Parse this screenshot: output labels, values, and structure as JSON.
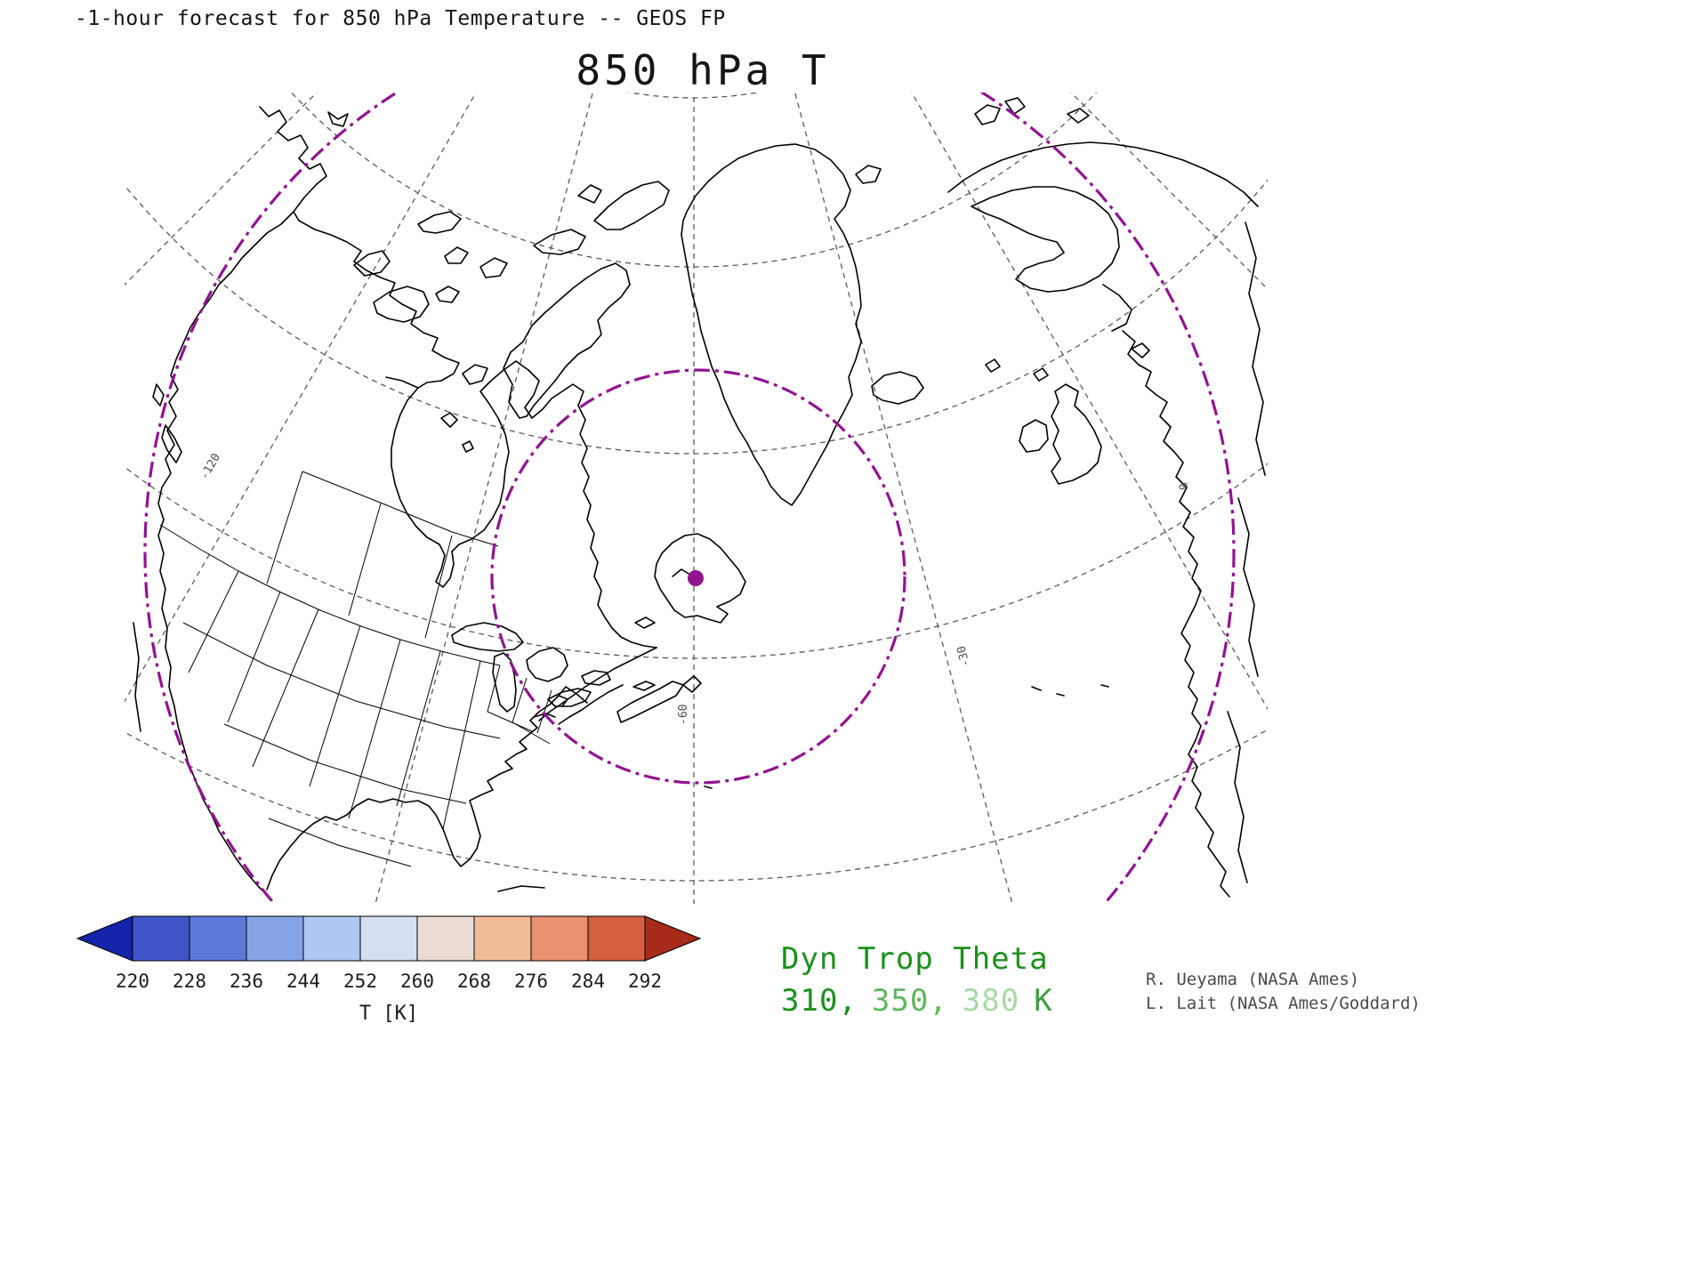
{
  "header": {
    "forecast_line": "-1-hour forecast for 850 hPa Temperature -- GEOS FP"
  },
  "title": "850 hPa T",
  "colorbar": {
    "ticks": [
      "220",
      "228",
      "236",
      "244",
      "252",
      "260",
      "268",
      "276",
      "284",
      "292"
    ],
    "unit_label": "T [K]",
    "left_arrow_color": "#1424a8",
    "right_arrow_color": "#a82a18",
    "cell_colors": [
      "#4055c8",
      "#5b7ad8",
      "#86a3e8",
      "#aec8f2",
      "#d5def2",
      "#eadcd3",
      "#f2bb97",
      "#ea9270",
      "#d55f41"
    ]
  },
  "legend": {
    "title": "Dyn Trop Theta",
    "title_color": "#1d8f1d",
    "levels": [
      {
        "text": "310,",
        "color": "#1d8f1d"
      },
      {
        "text": "350,",
        "color": "#5fb75f"
      },
      {
        "text": "380",
        "color": "#a8d8a8"
      }
    ],
    "unit": "K",
    "unit_color": "#3fa03f"
  },
  "credits": {
    "line1": "R. Ueyama (NASA Ames)",
    "line2": "L. Lait (NASA Ames/Goddard)"
  },
  "map": {
    "contour_color": "#911491",
    "marker_color": "#911491",
    "graticule_labels": [
      {
        "text": "-60"
      },
      {
        "text": "-30"
      },
      {
        "text": "-120"
      },
      {
        "text": "0"
      }
    ]
  },
  "chart_data": {
    "type": "map",
    "projection": "polar-stereographic",
    "title": "850 hPa T",
    "header": "-1-hour forecast for 850 hPa Temperature -- GEOS FP",
    "model": "GEOS FP",
    "colorbar": {
      "label": "T [K]",
      "orientation": "horizontal",
      "ticks": [
        220,
        228,
        236,
        244,
        252,
        260,
        268,
        276,
        284,
        292
      ]
    },
    "overlay_contours": {
      "name": "Dyn Trop Theta",
      "levels": [
        310,
        350,
        380
      ],
      "unit": "K",
      "style": "dash-dot",
      "color": "#911491"
    },
    "graticule_longitude_labels": [
      -120,
      -60,
      -30,
      0
    ],
    "marker": {
      "present": true,
      "color": "#911491",
      "region": "Newfoundland"
    }
  }
}
